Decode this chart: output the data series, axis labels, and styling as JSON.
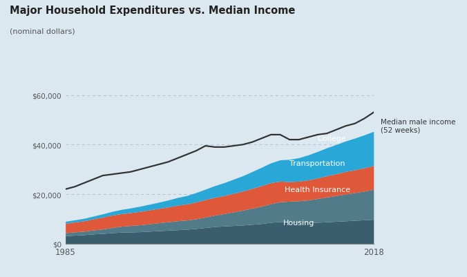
{
  "title": "Major Household Expenditures vs. Median Income",
  "subtitle": "(nominal dollars)",
  "background_color": "#dce8f0",
  "years": [
    1985,
    1986,
    1987,
    1988,
    1989,
    1990,
    1991,
    1992,
    1993,
    1994,
    1995,
    1996,
    1997,
    1998,
    1999,
    2000,
    2001,
    2002,
    2003,
    2004,
    2005,
    2006,
    2007,
    2008,
    2009,
    2010,
    2011,
    2012,
    2013,
    2014,
    2015,
    2016,
    2017,
    2018
  ],
  "housing": [
    3200,
    3400,
    3600,
    3900,
    4100,
    4400,
    4600,
    4700,
    4800,
    5000,
    5200,
    5400,
    5600,
    5800,
    6100,
    6500,
    6900,
    7100,
    7300,
    7500,
    7800,
    8100,
    8600,
    8900,
    8700,
    8500,
    8400,
    8600,
    8800,
    9000,
    9200,
    9400,
    9600,
    9800
  ],
  "health_insurance": [
    1200,
    1300,
    1400,
    1600,
    1800,
    2100,
    2400,
    2600,
    2800,
    3000,
    3200,
    3400,
    3600,
    3700,
    3900,
    4200,
    4600,
    5000,
    5500,
    6000,
    6500,
    7000,
    7500,
    8000,
    8400,
    8800,
    9200,
    9600,
    10000,
    10400,
    10800,
    11200,
    11600,
    12100
  ],
  "transportation": [
    3800,
    4000,
    4200,
    4500,
    4800,
    5000,
    5100,
    5200,
    5400,
    5600,
    5800,
    6000,
    6300,
    6500,
    6800,
    7100,
    7200,
    7300,
    7500,
    7700,
    8000,
    8300,
    8500,
    8300,
    7900,
    7900,
    8100,
    8300,
    8600,
    8800,
    9100,
    9200,
    9400,
    9600
  ],
  "college": [
    800,
    900,
    1000,
    1100,
    1300,
    1500,
    1700,
    1900,
    2100,
    2300,
    2500,
    2800,
    3100,
    3400,
    3800,
    4200,
    4700,
    5200,
    5700,
    6200,
    6800,
    7400,
    8000,
    8600,
    9000,
    9500,
    10100,
    10700,
    11300,
    11800,
    12300,
    12800,
    13300,
    13800
  ],
  "median_income": [
    22000,
    23000,
    24500,
    26000,
    27500,
    28000,
    28500,
    29000,
    30000,
    31000,
    32000,
    33000,
    34500,
    36000,
    37500,
    39500,
    39000,
    39000,
    39500,
    40000,
    41000,
    42500,
    44000,
    44000,
    42000,
    42000,
    43000,
    44000,
    44500,
    46000,
    47500,
    48500,
    50500,
    53000
  ],
  "colors": {
    "housing": "#3b5e6e",
    "health_insurance": "#527b8a",
    "transportation": "#e0583a",
    "college": "#29a8d8",
    "income_line": "#333333"
  },
  "income_label": "Median male income\n(52 weeks)",
  "xlim": [
    1985,
    2020
  ],
  "plot_xlim": [
    1985,
    2018
  ],
  "ylim": [
    0,
    65000
  ],
  "yticks": [
    0,
    20000,
    40000,
    60000
  ],
  "ytick_labels": [
    "$0",
    "$20,000",
    "$40,000",
    "$60,000"
  ],
  "xtick_positions": [
    1985,
    2018
  ],
  "xtick_labels": [
    "1985",
    "2018"
  ]
}
